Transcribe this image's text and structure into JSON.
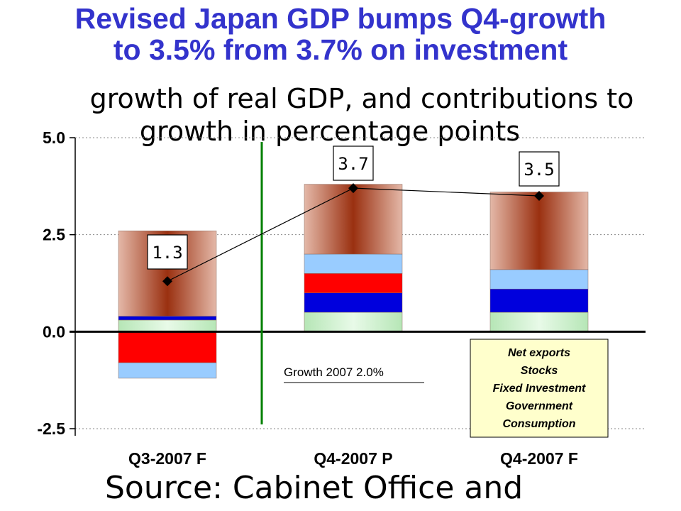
{
  "title_line1": "Revised Japan GDP bumps Q4-growth",
  "title_line2": "to 3.5% from 3.7% on investment",
  "subtitle_line1": "growth of real GDP, and contributions to",
  "subtitle_line2": "growth in percentage points",
  "source": "Source: Cabinet Office and",
  "note": "Growth 2007 2.0%",
  "colors": {
    "title": "#3333cc",
    "consumption": "#c8552e",
    "government": "#c6eec6",
    "fixed_investment": "#0000dd",
    "stocks": "#ff0000",
    "net_exports": "#99ccff",
    "divider": "#008000",
    "legend_bg": "#ffffcc"
  },
  "chart_data": {
    "type": "bar",
    "stacked": true,
    "categories": [
      "Q3-2007 F",
      "Q4-2007 P",
      "Q4-2007 F"
    ],
    "ylim": [
      -2.5,
      5.0
    ],
    "yticks": [
      "5.0",
      "2.5",
      "0.0",
      "-2.5"
    ],
    "ytick_values": [
      5.0,
      2.5,
      0.0,
      -2.5
    ],
    "grid": true,
    "series": [
      {
        "name": "Consumption",
        "color_key": "consumption",
        "values": [
          2.2,
          1.8,
          2.0
        ]
      },
      {
        "name": "Government",
        "color_key": "government",
        "values": [
          0.3,
          0.5,
          0.5
        ]
      },
      {
        "name": "Fixed Investment",
        "color_key": "fixed_investment",
        "values": [
          0.1,
          0.5,
          0.6
        ]
      },
      {
        "name": "Stocks",
        "color_key": "stocks",
        "values": [
          -0.8,
          0.5,
          0.0
        ]
      },
      {
        "name": "Net exports",
        "color_key": "net_exports",
        "values": [
          -0.4,
          0.5,
          0.5
        ]
      }
    ],
    "total": {
      "values": [
        1.3,
        3.7,
        3.5
      ],
      "labels": [
        "1.3",
        "3.7",
        "3.5"
      ]
    },
    "legend": [
      "Net exports",
      "Stocks",
      "Fixed Investment",
      "Government",
      "Consumption"
    ],
    "legend_position": "bottom-right"
  }
}
